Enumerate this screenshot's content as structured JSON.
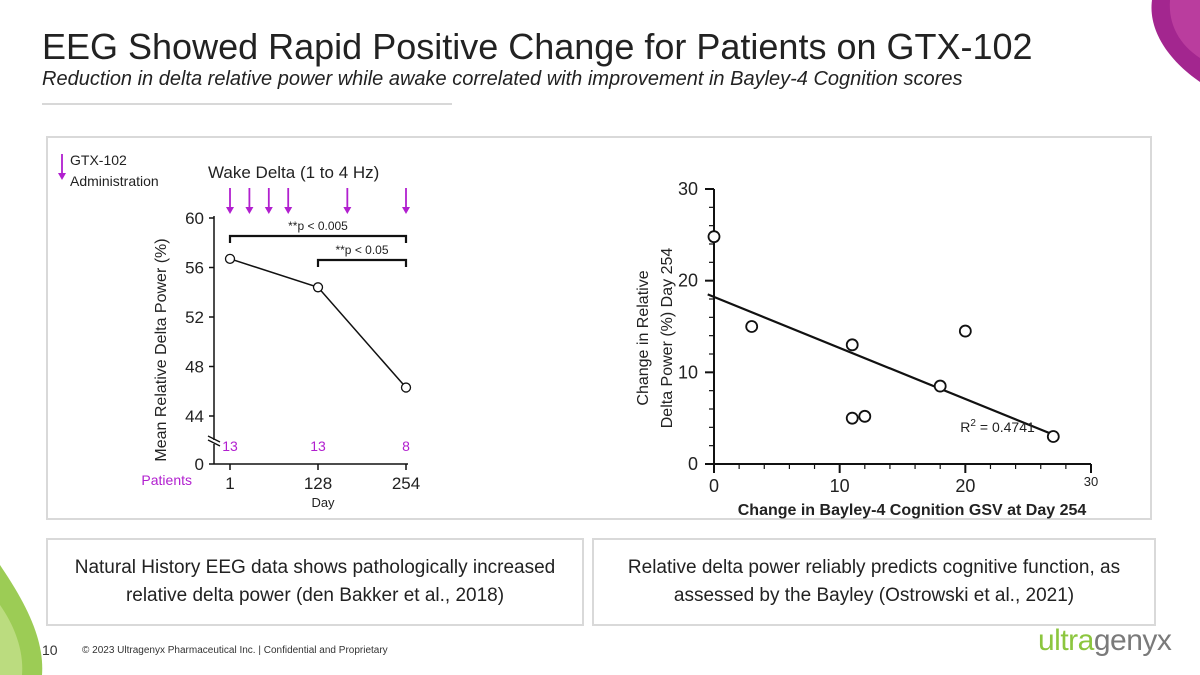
{
  "header": {
    "title": "EEG Showed Rapid Positive Change for Patients on GTX-102",
    "subtitle": "Reduction in delta relative power while awake correlated with improvement in Bayley-4 Cognition scores"
  },
  "chart_data": [
    {
      "type": "line",
      "title": "Wake Delta (1 to 4 Hz)",
      "xlabel": "Day",
      "ylabel": "Mean Relative Delta Power (%)",
      "x": [
        1,
        128,
        254
      ],
      "x_tick_labels": [
        "1",
        "128",
        "254"
      ],
      "series": [
        {
          "values": [
            56.7,
            54.4,
            46.3
          ]
        }
      ],
      "ylim": [
        0,
        60
      ],
      "y_axis_break": [
        0,
        43
      ],
      "y_ticks": [
        44,
        48,
        52,
        56,
        60
      ],
      "y_tick_labels": [
        "44",
        "48",
        "52",
        "56",
        "60"
      ],
      "y_zero_label": "0",
      "administration_days": [
        1,
        29,
        57,
        85,
        170,
        254
      ],
      "legend": {
        "label_line1": "GTX-102",
        "label_line2": "Administration",
        "color": "#b11fcf"
      },
      "significance": [
        {
          "from": 1,
          "to": 254,
          "label": "**p < 0.005"
        },
        {
          "from": 128,
          "to": 254,
          "label": "**p < 0.05"
        }
      ],
      "patients_label": "Patients",
      "patient_counts": [
        {
          "day": 1,
          "n": "13"
        },
        {
          "day": 128,
          "n": "13"
        },
        {
          "day": 254,
          "n": "8"
        }
      ],
      "grid": false
    },
    {
      "type": "scatter",
      "xlabel": "Change in Bayley-4 Cognition GSV at Day 254",
      "ylabel_line1": "Change in Relative",
      "ylabel_line2": "Delta Power (%) Day 254",
      "points": [
        {
          "x": 0,
          "y": 24.8
        },
        {
          "x": 3,
          "y": 15
        },
        {
          "x": 11,
          "y": 13
        },
        {
          "x": 11,
          "y": 5
        },
        {
          "x": 12,
          "y": 5.2
        },
        {
          "x": 18,
          "y": 8.5
        },
        {
          "x": 20,
          "y": 14.5
        },
        {
          "x": 27,
          "y": 3
        }
      ],
      "trendline": {
        "x1": -0.5,
        "y1": 18.5,
        "x2": 27,
        "y2": 3.2
      },
      "annotation": {
        "base": "R",
        "sup": "2",
        "rest": " = 0.4741",
        "x": 19.6,
        "y": 3.5
      },
      "xlim": [
        0,
        30
      ],
      "ylim": [
        0,
        30
      ],
      "x_tick_labels": [
        "0",
        "10",
        "20",
        "30"
      ],
      "y_tick_labels": [
        "0",
        "10",
        "20",
        "30"
      ],
      "grid": false
    }
  ],
  "notes": {
    "left": "Natural History EEG data shows pathologically increased relative delta power (den Bakker et al., 2018)",
    "right": "Relative delta power reliably predicts cognitive function, as assessed by the Bayley (Ostrowski et al., 2021)"
  },
  "footer": {
    "page_number": "10",
    "text": "© 2023 Ultragenyx Pharmaceutical Inc.   |   Confidential and Proprietary",
    "logo_part1": "ultra",
    "logo_part2": "genyx"
  },
  "colors": {
    "accent_purple": "#b11fcf",
    "brand_green": "#8cc63f",
    "brand_gray": "#7a7a7a",
    "border": "#d9d9d9"
  }
}
